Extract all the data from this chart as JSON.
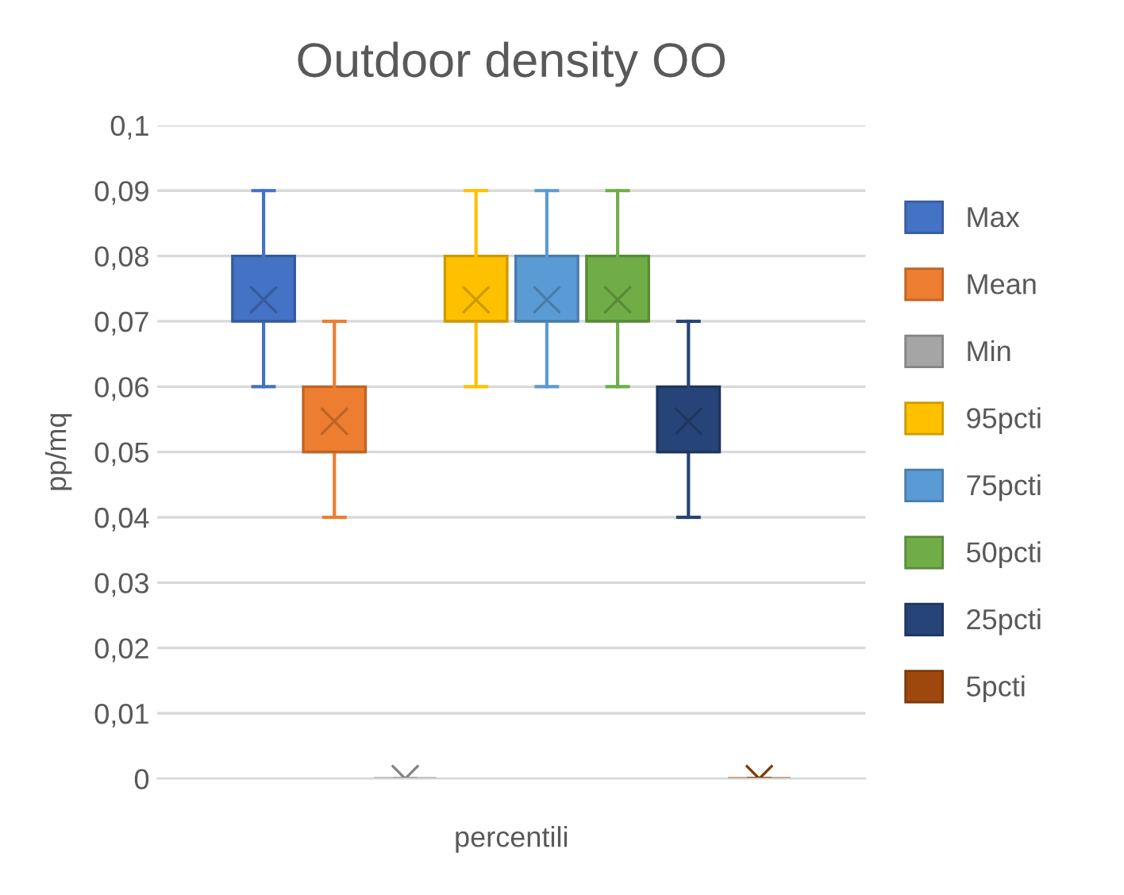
{
  "chart_data": {
    "type": "box",
    "title": "Outdoor density OO",
    "xlabel": "percentili",
    "ylabel": "pp/mq",
    "categories": [
      null
    ],
    "ylim": [
      0,
      0.1
    ],
    "yticks": [
      {
        "value": 0,
        "label": "0"
      },
      {
        "value": 0.01,
        "label": "0,01"
      },
      {
        "value": 0.02,
        "label": "0,02"
      },
      {
        "value": 0.03,
        "label": "0,03"
      },
      {
        "value": 0.04,
        "label": "0,04"
      },
      {
        "value": 0.05,
        "label": "0,05"
      },
      {
        "value": 0.06,
        "label": "0,06"
      },
      {
        "value": 0.07,
        "label": "0,07"
      },
      {
        "value": 0.08,
        "label": "0,08"
      },
      {
        "value": 0.09,
        "label": "0,09"
      },
      {
        "value": 0.1,
        "label": "0,1"
      }
    ],
    "grid": "y",
    "legend": "right",
    "series": [
      {
        "name": "Max",
        "color": "#4472c4",
        "boxes": [
          {
            "low": 0.06,
            "q1": 0.07,
            "median": 0.07,
            "q3": 0.08,
            "high": 0.09,
            "mean": 0.0733
          }
        ]
      },
      {
        "name": "Mean",
        "color": "#ed7d31",
        "boxes": [
          {
            "low": 0.04,
            "q1": 0.05,
            "median": 0.05,
            "q3": 0.06,
            "high": 0.07,
            "mean": 0.0547
          }
        ]
      },
      {
        "name": "Min",
        "color": "#a5a5a5",
        "boxes": [
          {
            "low": 0,
            "q1": 0,
            "median": 0,
            "q3": 0,
            "high": 0,
            "mean": 0
          }
        ]
      },
      {
        "name": "95pcti",
        "color": "#ffc000",
        "boxes": [
          {
            "low": 0.06,
            "q1": 0.07,
            "median": 0.07,
            "q3": 0.08,
            "high": 0.09,
            "mean": 0.0733
          }
        ]
      },
      {
        "name": "75pcti",
        "color": "#5b9bd5",
        "boxes": [
          {
            "low": 0.06,
            "q1": 0.07,
            "median": 0.07,
            "q3": 0.08,
            "high": 0.09,
            "mean": 0.0733
          }
        ]
      },
      {
        "name": "50pcti",
        "color": "#70ad47",
        "boxes": [
          {
            "low": 0.06,
            "q1": 0.07,
            "median": 0.07,
            "q3": 0.08,
            "high": 0.09,
            "mean": 0.0733
          }
        ]
      },
      {
        "name": "25pcti",
        "color": "#264478",
        "boxes": [
          {
            "low": 0.04,
            "q1": 0.05,
            "median": 0.05,
            "q3": 0.06,
            "high": 0.07,
            "mean": 0.0547
          }
        ]
      },
      {
        "name": "5pcti",
        "color": "#9e480e",
        "boxes": [
          {
            "low": 0,
            "q1": 0,
            "median": 0,
            "q3": 0,
            "high": 0,
            "mean": 0
          }
        ]
      }
    ]
  }
}
